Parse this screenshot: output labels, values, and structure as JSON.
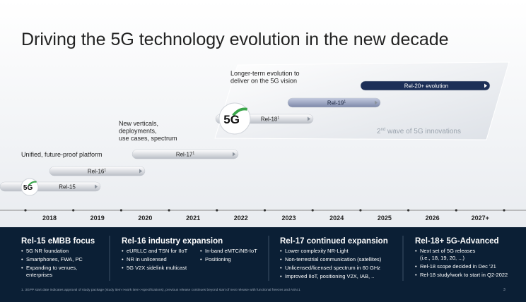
{
  "title": "Driving the 5G technology evolution in the new decade",
  "logo": "5G",
  "annotations": [
    {
      "lines": [
        "Unified, future-proof platform"
      ]
    },
    {
      "lines": [
        "New verticals,",
        "deployments,",
        "use cases, spectrum"
      ]
    },
    {
      "lines": [
        "Longer-term evolution to",
        "deliver on the 5G vision"
      ]
    }
  ],
  "second_wave": {
    "number": "2",
    "suffix": "nd",
    "text": " wave of 5G innovations"
  },
  "releases": [
    {
      "label": "Rel-15"
    },
    {
      "label": "Rel-16",
      "sup": "1"
    },
    {
      "label": "Rel-17",
      "sup": "1"
    },
    {
      "label": "Rel-18",
      "sup": "1"
    },
    {
      "label": "Rel-19",
      "sup": "1"
    },
    {
      "label": "Rel-20+ evolution"
    }
  ],
  "years": [
    "2018",
    "2019",
    "2020",
    "2021",
    "2022",
    "2023",
    "2024",
    "2025",
    "2026",
    "2027+"
  ],
  "columns": [
    {
      "heading": "Rel-15 eMBB focus",
      "bullets": [
        [
          "5G NR foundation"
        ],
        [
          "Smartphones, FWA, PC"
        ],
        [
          "Expanding to venues,",
          "enterprises"
        ]
      ]
    },
    {
      "heading": "Rel-16 industry expansion",
      "bullets": [
        [
          "eURLLC and TSN for IIoT"
        ],
        [
          "NR in unlicensed"
        ],
        [
          "5G V2X sidelink multicast"
        ],
        [
          "In-band eMTC/NB-IoT"
        ],
        [
          "Positioning"
        ]
      ]
    },
    {
      "heading": "Rel-17 continued expansion",
      "bullets": [
        [
          "Lower complexity NR-Light"
        ],
        [
          "Non-terrestrial communication (satellites)"
        ],
        [
          "Unlicensed/licensed spectrum in 60 GHz"
        ],
        [
          "Improved IIoT, positioning V2X, IAB, .."
        ]
      ]
    },
    {
      "heading": "Rel-18+ 5G-Advanced",
      "bullets": [
        [
          "Next set of 5G releases",
          "(i.e., 18, 19, 20, ...)"
        ],
        [
          "Rel-18 scope decided in Dec '21"
        ],
        [
          "Rel-18 study/work to start in Q2-2022"
        ]
      ]
    }
  ],
  "footnote": "1. 3GPP start date indicates approval of study package (study item->work item->specifications), previous release continues beyond start of next release with functional freezes and ASN.1",
  "page_number": "3"
}
